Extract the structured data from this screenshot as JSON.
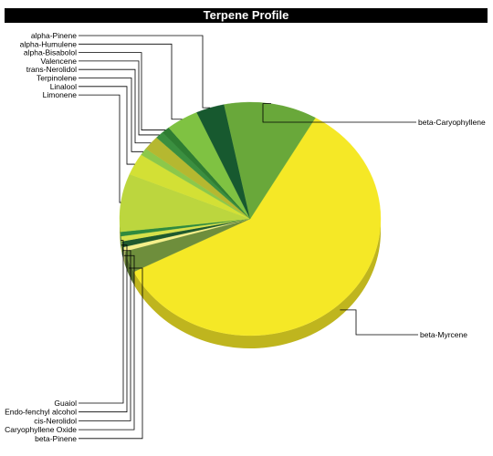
{
  "chart_data": {
    "type": "pie",
    "title": "Terpene Profile",
    "style": "3d",
    "categories": [
      "beta-Myrcene",
      "beta-Pinene",
      "Caryophyllene Oxide",
      "cis-Nerolidol",
      "Endo-fenchyl alcohol",
      "Guaiol",
      "Limonene",
      "Linalool",
      "Terpinolene",
      "trans-Nerolidol",
      "Valencene",
      "alpha-Bisabolol",
      "alpha-Humulene",
      "alpha-Pinene",
      "beta-Caryophyllene"
    ],
    "values": [
      59.0,
      3.0,
      0.6,
      0.8,
      0.7,
      0.6,
      8.0,
      3.0,
      1.0,
      2.0,
      1.0,
      1.0,
      4.0,
      3.5,
      11.5
    ],
    "unit": "%",
    "colors": [
      "#f5e826",
      "#6e8e3c",
      "#f4ef8a",
      "#1f5a2e",
      "#d6e04a",
      "#2f8a3e",
      "#bcd63e",
      "#d3e035",
      "#8cc84a",
      "#b5b830",
      "#3a8f3f",
      "#2e7d32",
      "#7fc242",
      "#17592f",
      "#69a83a"
    ],
    "legend": "none"
  }
}
